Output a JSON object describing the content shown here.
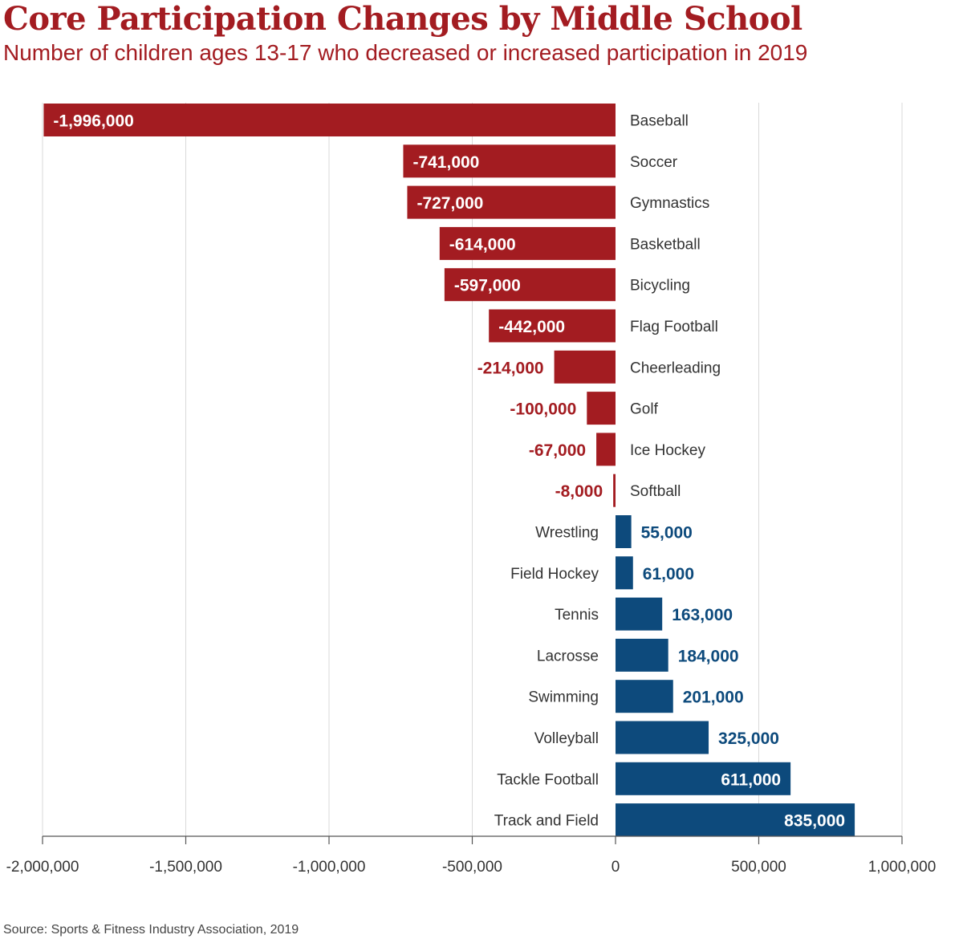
{
  "title": "Core Participation Changes by Middle School",
  "subtitle": "Number of children ages 13-17 who decreased or increased participation in 2019",
  "source": "Source: Sports & Fitness Industry Association, 2019",
  "colors": {
    "negative": "#a31c21",
    "positive": "#0d4a7c",
    "grid": "#d9d9d9",
    "axis": "#555555"
  },
  "chart_data": {
    "type": "bar",
    "orientation": "horizontal",
    "title": "Core Participation Changes by Middle School",
    "subtitle": "Number of children ages 13-17 who decreased or increased participation in 2019",
    "xlabel": "",
    "ylabel": "",
    "xlim": [
      -2000000,
      1000000
    ],
    "xticks": [
      -2000000,
      -1500000,
      -1000000,
      -500000,
      0,
      500000,
      1000000
    ],
    "xtick_labels": [
      "-2,000,000",
      "-1,500,000",
      "-1,000,000",
      "-500,000",
      "0",
      "500,000",
      "1,000,000"
    ],
    "grid": true,
    "categories": [
      "Baseball",
      "Soccer",
      "Gymnastics",
      "Basketball",
      "Bicycling",
      "Flag Football",
      "Cheerleading",
      "Golf",
      "Ice Hockey",
      "Softball",
      "Wrestling",
      "Field Hockey",
      "Tennis",
      "Lacrosse",
      "Swimming",
      "Volleyball",
      "Tackle Football",
      "Track and Field"
    ],
    "values": [
      -1996000,
      -741000,
      -727000,
      -614000,
      -597000,
      -442000,
      -214000,
      -100000,
      -67000,
      -8000,
      55000,
      61000,
      163000,
      184000,
      201000,
      325000,
      611000,
      835000
    ],
    "value_labels": [
      "-1,996,000",
      "-741,000",
      "-727,000",
      "-614,000",
      "-597,000",
      "-442,000",
      "-214,000",
      "-100,000",
      "-67,000",
      "-8,000",
      "55,000",
      "61,000",
      "163,000",
      "184,000",
      "201,000",
      "325,000",
      "611,000",
      "835,000"
    ]
  }
}
